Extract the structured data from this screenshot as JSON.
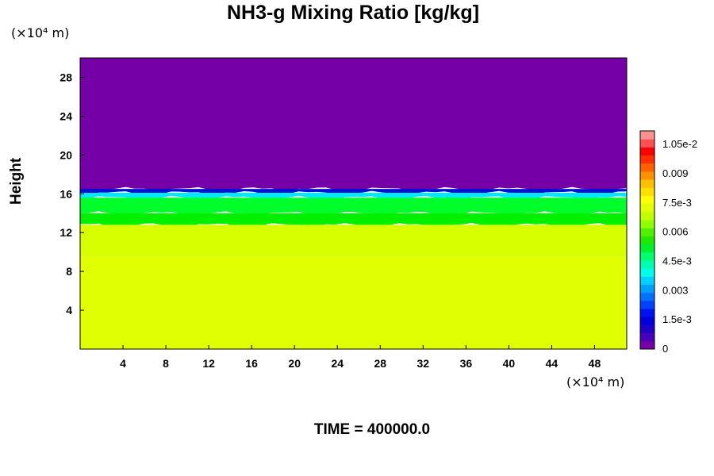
{
  "chart_data": {
    "type": "heatmap",
    "title": "NH3-g Mixing Ratio [kg/kg]",
    "ylabel": "Height",
    "xlabel": "",
    "x_unit": "(×10⁴ m)",
    "y_unit": "(×10⁴ m)",
    "footer": "TIME = 400000.0",
    "xlim": [
      0,
      51
    ],
    "ylim": [
      0,
      30
    ],
    "x_ticks": [
      4,
      8,
      12,
      16,
      20,
      24,
      28,
      32,
      36,
      40,
      44,
      48
    ],
    "y_ticks": [
      4,
      8,
      12,
      16,
      20,
      24,
      28
    ],
    "layers": [
      {
        "y_from": 0,
        "y_to": 9.5,
        "value": 0.0075,
        "color": "#e0ff00"
      },
      {
        "y_from": 9.5,
        "y_to": 12.8,
        "value": 0.0072,
        "color": "#d8ff00"
      },
      {
        "y_from": 12.8,
        "y_to": 14.0,
        "value": 0.0062,
        "color": "#00f000"
      },
      {
        "y_from": 14.0,
        "y_to": 15.6,
        "value": 0.0056,
        "color": "#00ff2a"
      },
      {
        "y_from": 15.6,
        "y_to": 16.1,
        "value": 0.003,
        "color": "#00e8ff"
      },
      {
        "y_from": 16.1,
        "y_to": 16.5,
        "value": 0.0012,
        "color": "#0010d0"
      },
      {
        "y_from": 16.5,
        "y_to": 30,
        "value": 0,
        "color": "#7500a8"
      }
    ],
    "colorbar": {
      "min": 0,
      "max": 0.0112,
      "labels": [
        {
          "value": 0,
          "text": "0"
        },
        {
          "value": 0.0015,
          "text": "1.5e-3"
        },
        {
          "value": 0.003,
          "text": "0.003"
        },
        {
          "value": 0.0045,
          "text": "4.5e-3"
        },
        {
          "value": 0.006,
          "text": "0.006"
        },
        {
          "value": 0.0075,
          "text": "7.5e-3"
        },
        {
          "value": 0.009,
          "text": "0.009"
        },
        {
          "value": 0.0105,
          "text": "1.05e-2"
        }
      ],
      "colors": [
        "#7500a8",
        "#4a00b8",
        "#2000c8",
        "#0000d8",
        "#0010f0",
        "#0040ff",
        "#0070ff",
        "#00a0ff",
        "#00d0ff",
        "#00ffe8",
        "#00ffb0",
        "#00ff70",
        "#00f030",
        "#20e800",
        "#50f000",
        "#90ff00",
        "#c0ff00",
        "#e0ff00",
        "#ffff00",
        "#ffe000",
        "#ffc000",
        "#ff9000",
        "#ff6000",
        "#ff3000",
        "#ff0000",
        "#ff5050",
        "#ff9090"
      ]
    }
  }
}
